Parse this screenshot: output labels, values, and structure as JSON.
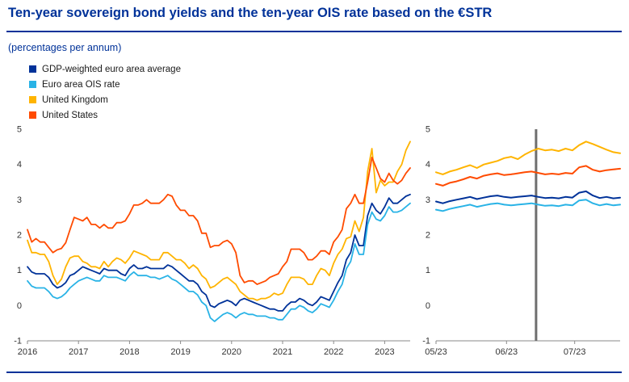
{
  "page": {
    "title": "Ten-year sovereign bond yields and the ten-year OIS rate based on the €STR",
    "subtitle": "(percentages per annum)"
  },
  "colors": {
    "accent": "#003299",
    "euro_area": "#003299",
    "ois": "#29b3e6",
    "united_kingdom": "#ffb400",
    "united_states": "#ff4b00",
    "event_line": "#6e6e6e"
  },
  "legend": [
    {
      "label": "GDP-weighted euro area average",
      "color": "#003299"
    },
    {
      "label": "Euro area OIS rate",
      "color": "#29b3e6"
    },
    {
      "label": "United Kingdom",
      "color": "#ffb400"
    },
    {
      "label": "United States",
      "color": "#ff4b00"
    }
  ],
  "chart_data": [
    {
      "type": "line",
      "panel": "main",
      "frequency": "monthly",
      "x_range": [
        "2016-01",
        "2023-07"
      ],
      "ylim": [
        -1,
        5
      ],
      "y_ticks": [
        -1,
        0,
        1,
        2,
        3,
        4,
        5
      ],
      "x_ticks": [
        {
          "label": "2016",
          "x": 0
        },
        {
          "label": "2017",
          "x": 12
        },
        {
          "label": "2018",
          "x": 24
        },
        {
          "label": "2019",
          "x": 36
        },
        {
          "label": "2020",
          "x": 48
        },
        {
          "label": "2021",
          "x": 60
        },
        {
          "label": "2022",
          "x": 72
        },
        {
          "label": "2023",
          "x": 84
        }
      ],
      "series": [
        {
          "name": "GDP-weighted euro area average",
          "color": "#003299",
          "values": [
            1.1,
            0.95,
            0.9,
            0.9,
            0.9,
            0.8,
            0.6,
            0.5,
            0.55,
            0.65,
            0.85,
            0.9,
            1.0,
            1.1,
            1.05,
            1.0,
            0.95,
            0.9,
            1.05,
            1.0,
            1.0,
            1.0,
            0.9,
            0.85,
            1.05,
            1.15,
            1.05,
            1.05,
            1.1,
            1.05,
            1.05,
            1.05,
            1.05,
            1.15,
            1.1,
            1.0,
            0.9,
            0.8,
            0.7,
            0.7,
            0.6,
            0.4,
            0.3,
            0.0,
            -0.05,
            0.05,
            0.1,
            0.15,
            0.1,
            0.0,
            0.15,
            0.2,
            0.15,
            0.1,
            0.05,
            0.0,
            -0.05,
            -0.1,
            -0.1,
            -0.15,
            -0.15,
            0.0,
            0.1,
            0.1,
            0.2,
            0.15,
            0.05,
            0.0,
            0.1,
            0.25,
            0.2,
            0.15,
            0.4,
            0.65,
            0.85,
            1.3,
            1.5,
            2.0,
            1.7,
            1.7,
            2.55,
            2.9,
            2.7,
            2.6,
            2.8,
            3.05,
            2.9,
            2.9,
            3.0,
            3.1,
            3.15
          ]
        },
        {
          "name": "Euro area OIS rate",
          "color": "#29b3e6",
          "values": [
            0.7,
            0.55,
            0.5,
            0.5,
            0.5,
            0.4,
            0.25,
            0.2,
            0.25,
            0.35,
            0.5,
            0.6,
            0.7,
            0.75,
            0.8,
            0.75,
            0.7,
            0.7,
            0.85,
            0.8,
            0.8,
            0.8,
            0.75,
            0.7,
            0.85,
            0.95,
            0.85,
            0.85,
            0.85,
            0.8,
            0.8,
            0.75,
            0.8,
            0.85,
            0.75,
            0.7,
            0.6,
            0.5,
            0.4,
            0.4,
            0.3,
            0.1,
            0.0,
            -0.35,
            -0.45,
            -0.35,
            -0.25,
            -0.2,
            -0.25,
            -0.35,
            -0.25,
            -0.2,
            -0.25,
            -0.25,
            -0.3,
            -0.3,
            -0.3,
            -0.35,
            -0.35,
            -0.4,
            -0.4,
            -0.25,
            -0.1,
            -0.1,
            0.0,
            -0.05,
            -0.15,
            -0.2,
            -0.1,
            0.05,
            0.0,
            -0.05,
            0.15,
            0.4,
            0.6,
            1.05,
            1.25,
            1.75,
            1.45,
            1.45,
            2.3,
            2.65,
            2.45,
            2.4,
            2.55,
            2.8,
            2.65,
            2.65,
            2.7,
            2.8,
            2.9
          ]
        },
        {
          "name": "United Kingdom",
          "color": "#ffb400",
          "values": [
            1.85,
            1.5,
            1.5,
            1.45,
            1.45,
            1.25,
            0.85,
            0.6,
            0.75,
            1.1,
            1.35,
            1.4,
            1.4,
            1.25,
            1.2,
            1.1,
            1.1,
            1.05,
            1.25,
            1.1,
            1.25,
            1.35,
            1.3,
            1.2,
            1.35,
            1.55,
            1.5,
            1.45,
            1.4,
            1.3,
            1.3,
            1.3,
            1.5,
            1.5,
            1.4,
            1.3,
            1.3,
            1.2,
            1.05,
            1.15,
            1.05,
            0.85,
            0.75,
            0.5,
            0.55,
            0.65,
            0.75,
            0.8,
            0.7,
            0.6,
            0.4,
            0.3,
            0.2,
            0.2,
            0.15,
            0.2,
            0.2,
            0.25,
            0.35,
            0.3,
            0.35,
            0.6,
            0.8,
            0.8,
            0.8,
            0.75,
            0.6,
            0.6,
            0.85,
            1.05,
            1.0,
            0.85,
            1.2,
            1.45,
            1.6,
            1.9,
            1.95,
            2.4,
            2.1,
            2.5,
            3.8,
            4.45,
            3.2,
            3.55,
            3.4,
            3.5,
            3.5,
            3.8,
            4.0,
            4.4,
            4.65
          ]
        },
        {
          "name": "United States",
          "color": "#ff4b00",
          "values": [
            2.15,
            1.8,
            1.9,
            1.8,
            1.8,
            1.65,
            1.5,
            1.58,
            1.62,
            1.78,
            2.15,
            2.5,
            2.45,
            2.4,
            2.5,
            2.3,
            2.3,
            2.2,
            2.3,
            2.2,
            2.2,
            2.35,
            2.35,
            2.4,
            2.6,
            2.85,
            2.85,
            2.9,
            3.0,
            2.9,
            2.9,
            2.9,
            3.0,
            3.15,
            3.1,
            2.85,
            2.7,
            2.7,
            2.55,
            2.55,
            2.4,
            2.05,
            2.05,
            1.65,
            1.7,
            1.7,
            1.8,
            1.85,
            1.75,
            1.5,
            0.85,
            0.65,
            0.7,
            0.7,
            0.6,
            0.65,
            0.7,
            0.8,
            0.85,
            0.9,
            1.1,
            1.25,
            1.6,
            1.6,
            1.6,
            1.5,
            1.3,
            1.3,
            1.4,
            1.55,
            1.55,
            1.45,
            1.8,
            1.95,
            2.15,
            2.75,
            2.9,
            3.15,
            2.9,
            2.9,
            3.5,
            4.2,
            3.9,
            3.6,
            3.5,
            3.75,
            3.55,
            3.45,
            3.55,
            3.75,
            3.9
          ]
        }
      ]
    },
    {
      "type": "line",
      "panel": "zoom",
      "frequency": "daily",
      "x_range": [
        "2023-05-01",
        "2023-07-21"
      ],
      "x_unit": "days since 2023-05-01",
      "ylim": [
        -1,
        5
      ],
      "y_ticks": [
        -1,
        0,
        1,
        2,
        3,
        4,
        5
      ],
      "xlim": [
        0,
        81
      ],
      "x": [
        0,
        3,
        6,
        9,
        12,
        15,
        18,
        21,
        24,
        27,
        30,
        33,
        36,
        39,
        42,
        45,
        48,
        51,
        54,
        57,
        60,
        63,
        66,
        69,
        72,
        75,
        78,
        81
      ],
      "x_ticks": [
        {
          "label": "05/23",
          "x": 0
        },
        {
          "label": "06/23",
          "x": 31
        },
        {
          "label": "07/23",
          "x": 61
        }
      ],
      "vline": {
        "x": 44,
        "color": "#6e6e6e"
      },
      "series": [
        {
          "name": "GDP-weighted euro area average",
          "color": "#003299",
          "values": [
            2.95,
            2.9,
            2.96,
            3.0,
            3.04,
            3.08,
            3.02,
            3.06,
            3.1,
            3.12,
            3.08,
            3.06,
            3.08,
            3.1,
            3.12,
            3.08,
            3.05,
            3.06,
            3.04,
            3.08,
            3.06,
            3.2,
            3.24,
            3.12,
            3.05,
            3.08,
            3.04,
            3.06
          ]
        },
        {
          "name": "Euro area OIS rate",
          "color": "#29b3e6",
          "values": [
            2.72,
            2.68,
            2.74,
            2.78,
            2.82,
            2.86,
            2.8,
            2.84,
            2.88,
            2.9,
            2.86,
            2.84,
            2.86,
            2.88,
            2.9,
            2.86,
            2.83,
            2.84,
            2.82,
            2.86,
            2.84,
            2.98,
            3.0,
            2.9,
            2.84,
            2.88,
            2.84,
            2.86
          ]
        },
        {
          "name": "United Kingdom",
          "color": "#ffb400",
          "values": [
            3.78,
            3.72,
            3.8,
            3.85,
            3.92,
            3.98,
            3.9,
            4.0,
            4.05,
            4.1,
            4.18,
            4.22,
            4.15,
            4.28,
            4.38,
            4.45,
            4.4,
            4.42,
            4.38,
            4.45,
            4.4,
            4.55,
            4.65,
            4.58,
            4.5,
            4.42,
            4.35,
            4.32
          ]
        },
        {
          "name": "United States",
          "color": "#ff4b00",
          "values": [
            3.45,
            3.4,
            3.48,
            3.52,
            3.58,
            3.65,
            3.6,
            3.68,
            3.72,
            3.75,
            3.7,
            3.72,
            3.75,
            3.78,
            3.8,
            3.76,
            3.72,
            3.74,
            3.72,
            3.76,
            3.74,
            3.92,
            3.96,
            3.85,
            3.8,
            3.84,
            3.86,
            3.88
          ]
        }
      ]
    }
  ]
}
